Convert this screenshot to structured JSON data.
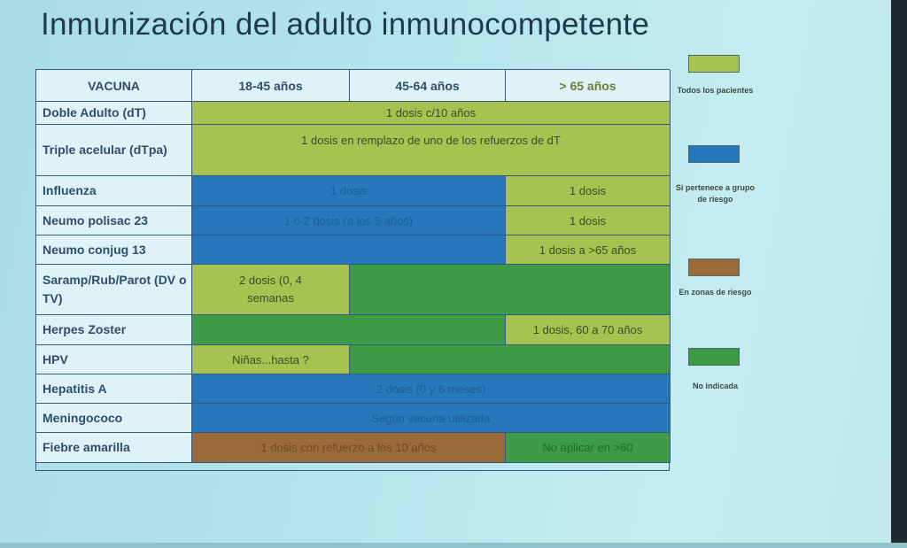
{
  "title": "Inmunización del adulto inmunocompetente",
  "table": {
    "header": {
      "vacuna": "VACUNA",
      "col1": "18-45 años",
      "col2": "45-64 años",
      "col3": "> 65 años"
    },
    "rows": [
      {
        "label": "Doble Adulto (dT)",
        "cells": [
          {
            "text": "1 dosis c/10 años",
            "color": "#a7c250"
          }
        ]
      },
      {
        "label": "Triple acelular (dTpa)",
        "cells": [
          {
            "text": "1 dosis en remplazo de uno de los refuerzos de dT",
            "color": "#a7c250"
          }
        ]
      },
      {
        "label": "Influenza",
        "cells": [
          {
            "text": "1 dosis",
            "color": "#2778bb"
          },
          {
            "text": "1 dosis",
            "color": "#a7c250"
          }
        ]
      },
      {
        "label": "Neumo polisac 23",
        "cells": [
          {
            "text": "1 o 2 dosis (a los 5 años)",
            "color": "#2778bb"
          },
          {
            "text": "1 dosis",
            "color": "#a7c250"
          }
        ]
      },
      {
        "label": "Neumo conjug 13",
        "cells": [
          {
            "text": "",
            "color": "#2778bb"
          },
          {
            "text": "1 dosis a >65 años",
            "color": "#a7c250"
          }
        ]
      },
      {
        "label": "Saramp/Rub/Parot (DV o TV)",
        "cells": [
          {
            "text": "2 dosis (0, 4 semanas",
            "color": "#a7c250"
          },
          {
            "text": "",
            "color": "#3d9a45"
          }
        ]
      },
      {
        "label": "Herpes Zoster",
        "cells": [
          {
            "text": "",
            "color": "#3d9a45"
          },
          {
            "text": "1 dosis, 60 a 70 años",
            "color": "#a7c250"
          }
        ]
      },
      {
        "label": "HPV",
        "cells": [
          {
            "text": "Niñas...hasta ?",
            "color": "#a7c250"
          },
          {
            "text": "",
            "color": "#3d9a45"
          }
        ]
      },
      {
        "label": "Hepatitis A",
        "cells": [
          {
            "text": "2 dosis (0 y 6 meses)",
            "color": "#2778bb"
          }
        ]
      },
      {
        "label": "Meningococo",
        "cells": [
          {
            "text": "Según vacuna utilizada",
            "color": "#2778bb"
          }
        ]
      },
      {
        "label": "Fiebre amarilla",
        "cells": [
          {
            "text": "1 dosis con refuerzo a los 10 años",
            "color": "#9b6a3b"
          },
          {
            "text": "No aplicar en >60",
            "color": "#3d9a45"
          }
        ]
      }
    ]
  },
  "legend": [
    {
      "label": "Todos los pacientes",
      "color": "#a7c250"
    },
    {
      "label": "Si pertenece a grupo de riesgo",
      "color": "#2778bb"
    },
    {
      "label": "En zonas de riesgo",
      "color": "#9b6a3b"
    },
    {
      "label": "No indicada",
      "color": "#3d9a45"
    }
  ]
}
